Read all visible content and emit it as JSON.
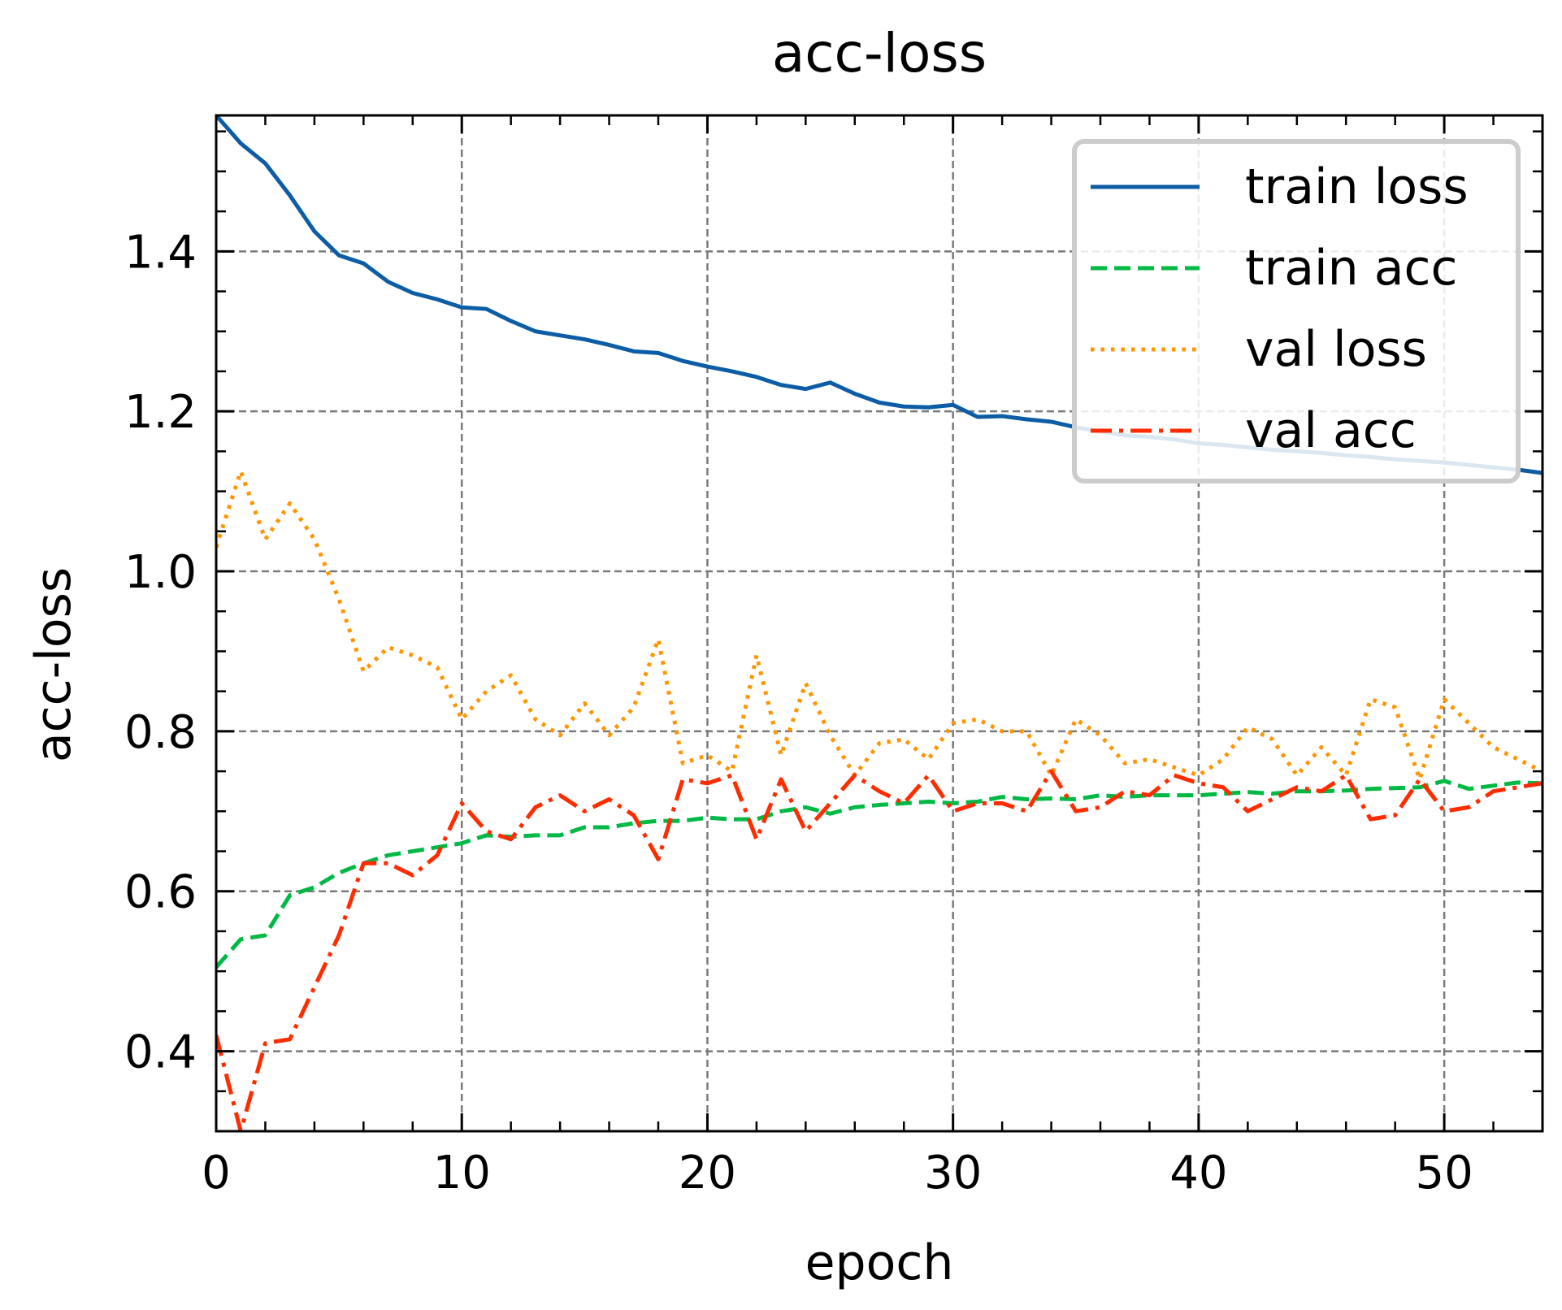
{
  "chart_data": {
    "type": "line",
    "title": "acc-loss",
    "xlabel": "epoch",
    "ylabel": "acc-loss",
    "xlim": [
      0,
      54
    ],
    "ylim": [
      0.3,
      1.57
    ],
    "xticks": [
      0,
      10,
      20,
      30,
      40,
      50
    ],
    "xtick_labels": [
      "0",
      "10",
      "20",
      "30",
      "40",
      "50"
    ],
    "yticks": [
      0.4,
      0.6,
      0.8,
      1.0,
      1.2,
      1.4
    ],
    "ytick_labels": [
      "0.4",
      "0.6",
      "0.8",
      "1.0",
      "1.2",
      "1.4"
    ],
    "grid": true,
    "legend_position": "top-right",
    "x": [
      0,
      1,
      2,
      3,
      4,
      5,
      6,
      7,
      8,
      9,
      10,
      11,
      12,
      13,
      14,
      15,
      16,
      17,
      18,
      19,
      20,
      21,
      22,
      23,
      24,
      25,
      26,
      27,
      28,
      29,
      30,
      31,
      32,
      33,
      34,
      35,
      36,
      37,
      38,
      39,
      40,
      41,
      42,
      43,
      44,
      45,
      46,
      47,
      48,
      49,
      50,
      51,
      52,
      53,
      54
    ],
    "series": [
      {
        "name": "train loss",
        "color": "#0c5da5",
        "dash": "solid",
        "values": [
          1.57,
          1.535,
          1.51,
          1.47,
          1.425,
          1.395,
          1.385,
          1.362,
          1.348,
          1.34,
          1.33,
          1.328,
          1.313,
          1.3,
          1.295,
          1.29,
          1.283,
          1.275,
          1.273,
          1.263,
          1.256,
          1.25,
          1.243,
          1.233,
          1.228,
          1.236,
          1.222,
          1.211,
          1.206,
          1.205,
          1.208,
          1.193,
          1.194,
          1.19,
          1.187,
          1.18,
          1.175,
          1.17,
          1.168,
          1.165,
          1.16,
          1.158,
          1.155,
          1.152,
          1.15,
          1.148,
          1.145,
          1.143,
          1.14,
          1.138,
          1.136,
          1.133,
          1.13,
          1.127,
          1.123
        ]
      },
      {
        "name": "train acc",
        "color": "#00b945",
        "dash": "dashed",
        "values": [
          0.505,
          0.54,
          0.545,
          0.595,
          0.605,
          0.623,
          0.635,
          0.645,
          0.65,
          0.655,
          0.66,
          0.67,
          0.668,
          0.67,
          0.67,
          0.68,
          0.68,
          0.685,
          0.688,
          0.688,
          0.692,
          0.69,
          0.69,
          0.7,
          0.705,
          0.697,
          0.705,
          0.708,
          0.71,
          0.712,
          0.71,
          0.712,
          0.718,
          0.715,
          0.716,
          0.715,
          0.72,
          0.718,
          0.72,
          0.72,
          0.72,
          0.722,
          0.724,
          0.722,
          0.725,
          0.725,
          0.726,
          0.728,
          0.729,
          0.73,
          0.738,
          0.728,
          0.732,
          0.736,
          0.735
        ]
      },
      {
        "name": "val loss",
        "color": "#ff9500",
        "dash": "dotted",
        "values": [
          1.03,
          1.125,
          1.04,
          1.085,
          1.04,
          0.965,
          0.875,
          0.905,
          0.895,
          0.88,
          0.815,
          0.85,
          0.87,
          0.815,
          0.795,
          0.835,
          0.795,
          0.83,
          0.915,
          0.76,
          0.77,
          0.75,
          0.895,
          0.77,
          0.86,
          0.795,
          0.745,
          0.785,
          0.79,
          0.765,
          0.81,
          0.815,
          0.8,
          0.8,
          0.745,
          0.815,
          0.795,
          0.76,
          0.765,
          0.755,
          0.745,
          0.765,
          0.805,
          0.79,
          0.745,
          0.78,
          0.745,
          0.84,
          0.83,
          0.74,
          0.84,
          0.81,
          0.78,
          0.765,
          0.75
        ]
      },
      {
        "name": "val acc",
        "color": "#ff2c00",
        "dash": "dashdot",
        "values": [
          0.42,
          0.3,
          0.41,
          0.415,
          0.48,
          0.545,
          0.635,
          0.635,
          0.62,
          0.645,
          0.71,
          0.675,
          0.665,
          0.705,
          0.72,
          0.7,
          0.715,
          0.695,
          0.64,
          0.74,
          0.735,
          0.745,
          0.665,
          0.74,
          0.675,
          0.71,
          0.745,
          0.725,
          0.71,
          0.745,
          0.7,
          0.71,
          0.71,
          0.7,
          0.75,
          0.7,
          0.705,
          0.725,
          0.72,
          0.745,
          0.735,
          0.73,
          0.7,
          0.715,
          0.73,
          0.725,
          0.745,
          0.69,
          0.695,
          0.74,
          0.7,
          0.705,
          0.725,
          0.73,
          0.735
        ]
      }
    ]
  }
}
